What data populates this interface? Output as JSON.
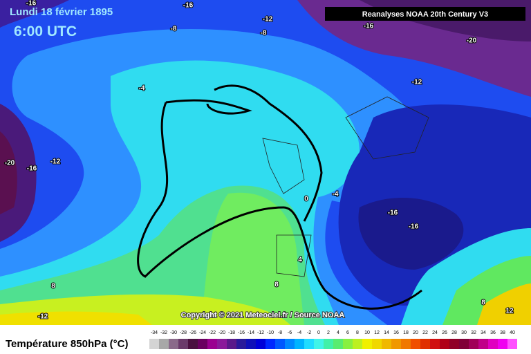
{
  "header": {
    "date": "Lundi 18 février 1895",
    "time": "6:00 UTC",
    "source": "Reanalyses NOAA 20th Century V3"
  },
  "copyright": "Copyright © 2021 Meteociel.fr / Source NOAA",
  "contour_labels": [
    -16,
    -16,
    -12,
    -8,
    -8,
    -16,
    -20,
    -12,
    -4,
    -20,
    -16,
    -12,
    0,
    -4,
    -16,
    -16,
    4,
    8,
    8,
    -12,
    8,
    12
  ],
  "legend": {
    "title": "Température 850hPa (°C)",
    "ticks": [
      -34,
      -32,
      -30,
      -28,
      -26,
      -24,
      -22,
      -20,
      -18,
      -16,
      -14,
      -12,
      -10,
      -8,
      -6,
      -4,
      -2,
      0,
      2,
      4,
      6,
      8,
      10,
      12,
      14,
      16,
      18,
      20,
      22,
      24,
      26,
      28,
      30,
      32,
      34,
      36,
      38,
      40
    ],
    "colors": [
      "#d4d4d4",
      "#a8a8a8",
      "#8a6a8a",
      "#6a3a6a",
      "#4a1040",
      "#6a0060",
      "#9a0090",
      "#8a1a9a",
      "#5a1a8a",
      "#2a1a9a",
      "#1010b8",
      "#0000d8",
      "#0028ff",
      "#0058ff",
      "#0088ff",
      "#00b4ff",
      "#20dcff",
      "#40f4e8",
      "#40f0a8",
      "#58ec70",
      "#88f040",
      "#bcf020",
      "#f0f000",
      "#f0d800",
      "#f0b800",
      "#f09800",
      "#f07800",
      "#f05000",
      "#e03000",
      "#d01010",
      "#b00018",
      "#900028",
      "#800038",
      "#a00058",
      "#c00088",
      "#e000c0",
      "#f000f0",
      "#ff50ff"
    ]
  }
}
